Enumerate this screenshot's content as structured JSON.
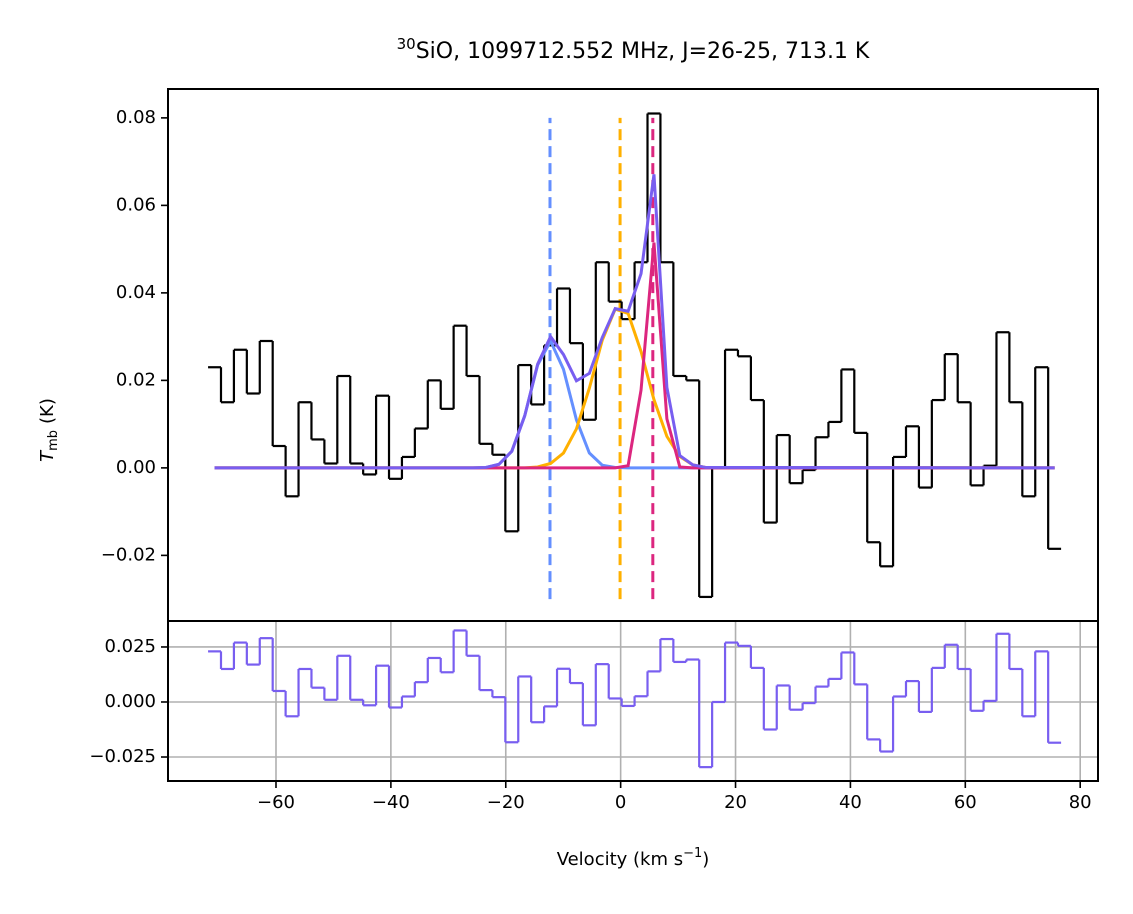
{
  "chart_data": {
    "type": "step",
    "title_sup": "30",
    "title": "SiO, 1099712.552 MHz, J=26-25, 713.1 K",
    "xlabel": [
      "Velocity (km s",
      "−1",
      ")"
    ],
    "xlim": [
      -78.8,
      83.1
    ],
    "xticks": [
      {
        "value": -60,
        "label": "−60"
      },
      {
        "value": -40,
        "label": "−40"
      },
      {
        "value": -20,
        "label": "−20"
      },
      0,
      20,
      40,
      60,
      80
    ],
    "x": [
      -70.7,
      -68.45,
      -66.2,
      -63.95,
      -61.7,
      -59.45,
      -57.2,
      -54.95,
      -52.7,
      -50.45,
      -48.2,
      -45.95,
      -43.7,
      -41.45,
      -39.2,
      -36.95,
      -34.7,
      -32.45,
      -30.2,
      -27.95,
      -25.7,
      -23.45,
      -21.2,
      -18.95,
      -16.7,
      -14.45,
      -12.2,
      -9.95,
      -7.7,
      -5.45,
      -3.2,
      -0.95,
      1.3,
      3.55,
      5.8,
      8.05,
      10.3,
      12.55,
      14.8,
      17.05,
      19.3,
      21.55,
      23.8,
      26.05,
      28.3,
      30.55,
      32.8,
      35.05,
      37.3,
      39.55,
      41.8,
      44.05,
      46.3,
      48.55,
      50.8,
      53.05,
      55.3,
      57.55,
      59.8,
      62.05,
      64.3,
      66.55,
      68.8,
      71.05,
      73.3,
      75.55
    ],
    "panels": [
      {
        "ylabel": {
          "main": "T",
          "sub": "mb",
          "unit": "(K)"
        },
        "ylim": [
          -0.035,
          0.0866
        ],
        "yticks": [
          {
            "value": -0.02,
            "label": "−0.02"
          },
          {
            "value": 0,
            "label": "0.00"
          },
          0.02,
          0.04,
          0.06,
          0.08
        ],
        "vline_range": [
          -0.03,
          0.08
        ],
        "vlines": [
          {
            "x": -12.3,
            "color": "#648fff"
          },
          {
            "x": -0.1,
            "color": "#ffb000"
          },
          {
            "x": 5.6,
            "color": "#dc267f"
          }
        ],
        "series": [
          {
            "kind": "step",
            "color": "#000000",
            "values": [
              0.023,
              0.015,
              0.027,
              0.017,
              0.029,
              0.005,
              -0.0065,
              0.015,
              0.0065,
              0.001,
              0.021,
              0.001,
              -0.0015,
              0.0165,
              -0.0025,
              0.0025,
              0.009,
              0.02,
              0.0135,
              0.0325,
              0.021,
              0.0055,
              0.003,
              -0.0145,
              0.0235,
              0.0145,
              0.028,
              0.041,
              0.0285,
              0.011,
              0.047,
              0.038,
              0.034,
              0.047,
              0.081,
              0.047,
              0.021,
              0.02,
              -0.0295,
              0,
              0.027,
              0.0255,
              0.0155,
              -0.0125,
              0.0075,
              -0.0035,
              -0.0005,
              0.007,
              0.0105,
              0.0225,
              0.008,
              -0.017,
              -0.0225,
              0.0025,
              0.0095,
              -0.0045,
              0.0155,
              0.026,
              0.015,
              -0.004,
              0.0005,
              0.031,
              0.015,
              -0.0065,
              0.023,
              -0.0185
            ]
          },
          {
            "kind": "line",
            "color": "#648fff",
            "x": [
              -70.7,
              -25.7,
              -23.45,
              -21.2,
              -18.95,
              -16.7,
              -14.45,
              -12.2,
              -9.95,
              -7.7,
              -5.45,
              -3.2,
              -0.95,
              1.3,
              3.55,
              5.8,
              8.05,
              10.3,
              12.55,
              14.8,
              75.55
            ],
            "values": [
              0,
              0,
              0.0001,
              0.0008,
              0.0038,
              0.0119,
              0.0235,
              0.029,
              0.0225,
              0.011,
              0.0034,
              0.0006,
              0.0001,
              0,
              0,
              0,
              0,
              0,
              0,
              0,
              0
            ]
          },
          {
            "kind": "line",
            "color": "#ffb000",
            "x": [
              -70.7,
              -25.7,
              -23.45,
              -21.2,
              -18.95,
              -16.7,
              -14.45,
              -12.2,
              -9.95,
              -7.7,
              -5.45,
              -3.2,
              -0.95,
              1.3,
              3.55,
              5.8,
              8.05,
              10.3,
              12.55,
              14.8,
              75.55
            ],
            "values": [
              0,
              0,
              0,
              0,
              0,
              0,
              0.0002,
              0.001,
              0.0034,
              0.0089,
              0.0182,
              0.0292,
              0.0363,
              0.0353,
              0.0266,
              0.0156,
              0.0072,
              0.0026,
              0.0007,
              0.0001,
              0
            ]
          },
          {
            "kind": "line",
            "color": "#dc267f",
            "x": [
              -70.7,
              -25.7,
              -23.45,
              -21.2,
              -18.95,
              -16.7,
              -14.45,
              -12.2,
              -9.95,
              -7.7,
              -5.45,
              -3.2,
              -0.95,
              1.3,
              3.55,
              5.8,
              8.05,
              10.3,
              12.55,
              14.8,
              75.55
            ],
            "values": [
              0,
              0,
              0,
              0,
              0,
              0,
              0,
              0,
              0,
              0,
              0,
              0,
              0,
              0.0005,
              0.0178,
              0.0515,
              0.0112,
              0.0002,
              0,
              0,
              0
            ]
          },
          {
            "kind": "line",
            "color": "#785ef0",
            "x": [
              -70.7,
              -25.7,
              -23.45,
              -21.2,
              -18.95,
              -16.7,
              -14.45,
              -12.2,
              -9.95,
              -7.7,
              -5.45,
              -3.2,
              -0.95,
              1.3,
              3.55,
              5.8,
              8.05,
              10.3,
              12.55,
              14.8,
              75.55
            ],
            "values": [
              0,
              0,
              0.0001,
              0.0008,
              0.0038,
              0.0119,
              0.0237,
              0.03,
              0.0259,
              0.0199,
              0.0216,
              0.0298,
              0.0364,
              0.0358,
              0.0444,
              0.0671,
              0.0184,
              0.0028,
              0.0007,
              0.0001,
              0
            ]
          }
        ]
      },
      {
        "ylim": [
          -0.0359,
          0.0368
        ],
        "yticks": [
          {
            "value": -0.025,
            "label": "−0.025"
          },
          {
            "value": 0,
            "label": "0.000"
          },
          0.025
        ],
        "grid": true,
        "series": [
          {
            "kind": "step",
            "color": "#785ef0",
            "values": [
              0.023,
              0.015,
              0.027,
              0.017,
              0.029,
              0.005,
              -0.0065,
              0.015,
              0.0065,
              0.001,
              0.021,
              0.001,
              -0.0015,
              0.0165,
              -0.0025,
              0.0025,
              0.009,
              0.02,
              0.0135,
              0.0325,
              0.021,
              0.0054,
              0.0022,
              -0.0183,
              0.0116,
              -0.0092,
              -0.002,
              0.0151,
              0.0086,
              -0.0106,
              0.0172,
              0.0016,
              -0.0018,
              0.0026,
              0.0139,
              0.0286,
              0.0182,
              0.0193,
              -0.0296,
              0,
              0.027,
              0.0255,
              0.0155,
              -0.0125,
              0.0075,
              -0.0035,
              -0.0005,
              0.007,
              0.0105,
              0.0225,
              0.008,
              -0.017,
              -0.0225,
              0.0025,
              0.0095,
              -0.0045,
              0.0155,
              0.026,
              0.015,
              -0.004,
              0.0005,
              0.031,
              0.015,
              -0.0065,
              0.023,
              -0.0185
            ]
          }
        ]
      }
    ]
  }
}
